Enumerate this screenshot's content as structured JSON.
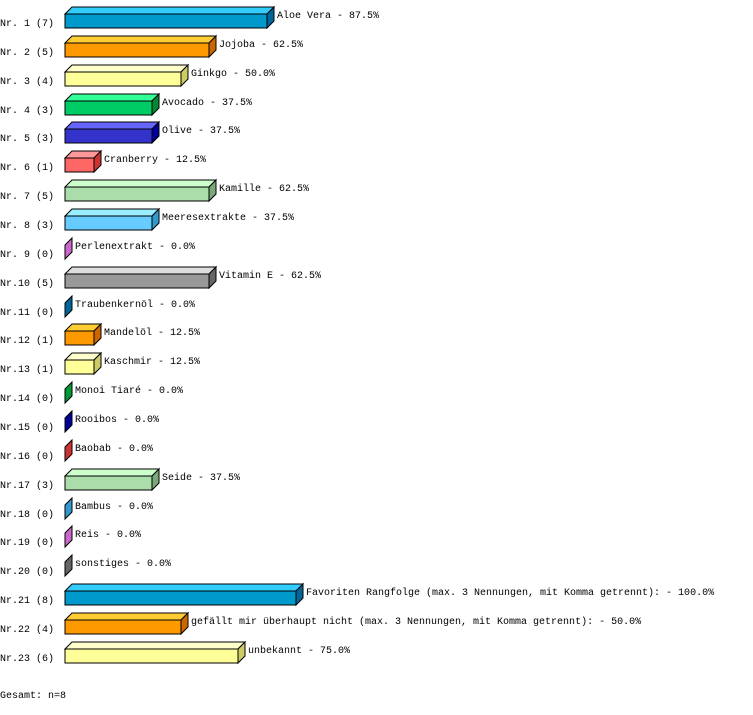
{
  "chart_data": {
    "type": "bar",
    "orientation": "horizontal",
    "style": "3d",
    "xlim": [
      0,
      100
    ],
    "grid": false,
    "bars": [
      {
        "row_label": "Nr. 1 (7)",
        "count": 7,
        "name": "Aloe Vera",
        "value": 87.5,
        "value_label": "87.5%",
        "front": "#0099cc",
        "top": "#33ccff",
        "side": "#006699"
      },
      {
        "row_label": "Nr. 2 (5)",
        "count": 5,
        "name": "Jojoba",
        "value": 62.5,
        "value_label": "62.5%",
        "front": "#ff9900",
        "top": "#ffcc33",
        "side": "#cc6600"
      },
      {
        "row_label": "Nr. 3 (4)",
        "count": 4,
        "name": "Ginkgo",
        "value": 50.0,
        "value_label": "50.0%",
        "front": "#ffff99",
        "top": "#ffffcc",
        "side": "#cccc66"
      },
      {
        "row_label": "Nr. 4 (3)",
        "count": 3,
        "name": "Avocado",
        "value": 37.5,
        "value_label": "37.5%",
        "front": "#00cc66",
        "top": "#33ff99",
        "side": "#008833"
      },
      {
        "row_label": "Nr. 5 (3)",
        "count": 3,
        "name": "Olive",
        "value": 37.5,
        "value_label": "37.5%",
        "front": "#3333cc",
        "top": "#6666ff",
        "side": "#000099"
      },
      {
        "row_label": "Nr. 6 (1)",
        "count": 1,
        "name": "Cranberry",
        "value": 12.5,
        "value_label": "12.5%",
        "front": "#ff6666",
        "top": "#ff9999",
        "side": "#cc3333"
      },
      {
        "row_label": "Nr. 7 (5)",
        "count": 5,
        "name": "Kamille",
        "value": 62.5,
        "value_label": "62.5%",
        "front": "#aaddaa",
        "top": "#ccffcc",
        "side": "#77aa77"
      },
      {
        "row_label": "Nr. 8 (3)",
        "count": 3,
        "name": "Meeresextrakte",
        "value": 37.5,
        "value_label": "37.5%",
        "front": "#66ccff",
        "top": "#99eeff",
        "side": "#3399cc"
      },
      {
        "row_label": "Nr. 9 (0)",
        "count": 0,
        "name": "Perlenextrakt",
        "value": 0.0,
        "value_label": " 0.0%",
        "front": "#cc66cc",
        "top": "#ee99ee",
        "side": "#cc66cc"
      },
      {
        "row_label": "Nr.10 (5)",
        "count": 5,
        "name": "Vitamin E",
        "value": 62.5,
        "value_label": "62.5%",
        "front": "#999999",
        "top": "#dddddd",
        "side": "#666666"
      },
      {
        "row_label": "Nr.11 (0)",
        "count": 0,
        "name": "Traubenkernöl",
        "value": 0.0,
        "value_label": " 0.0%",
        "front": "#006699",
        "top": "#3399cc",
        "side": "#006699"
      },
      {
        "row_label": "Nr.12 (1)",
        "count": 1,
        "name": "Mandelöl",
        "value": 12.5,
        "value_label": "12.5%",
        "front": "#ff9900",
        "top": "#ffcc33",
        "side": "#cc6600"
      },
      {
        "row_label": "Nr.13 (1)",
        "count": 1,
        "name": "Kaschmir",
        "value": 12.5,
        "value_label": "12.5%",
        "front": "#ffff99",
        "top": "#ffffcc",
        "side": "#cccc66"
      },
      {
        "row_label": "Nr.14 (0)",
        "count": 0,
        "name": "Monoi Tiaré",
        "value": 0.0,
        "value_label": " 0.0%",
        "front": "#009933",
        "top": "#33cc66",
        "side": "#009933"
      },
      {
        "row_label": "Nr.15 (0)",
        "count": 0,
        "name": "Rooibos",
        "value": 0.0,
        "value_label": " 0.0%",
        "front": "#000099",
        "top": "#3333cc",
        "side": "#000099"
      },
      {
        "row_label": "Nr.16 (0)",
        "count": 0,
        "name": "Baobab",
        "value": 0.0,
        "value_label": " 0.0%",
        "front": "#cc3333",
        "top": "#ff6666",
        "side": "#cc3333"
      },
      {
        "row_label": "Nr.17 (3)",
        "count": 3,
        "name": "Seide",
        "value": 37.5,
        "value_label": "37.5%",
        "front": "#aaddaa",
        "top": "#ccffcc",
        "side": "#77aa77"
      },
      {
        "row_label": "Nr.18 (0)",
        "count": 0,
        "name": "Bambus",
        "value": 0.0,
        "value_label": " 0.0%",
        "front": "#3399cc",
        "top": "#66ccff",
        "side": "#3399cc"
      },
      {
        "row_label": "Nr.19 (0)",
        "count": 0,
        "name": "Reis",
        "value": 0.0,
        "value_label": " 0.0%",
        "front": "#cc66cc",
        "top": "#ee99ee",
        "side": "#cc66cc"
      },
      {
        "row_label": "Nr.20 (0)",
        "count": 0,
        "name": "sonstiges",
        "value": 0.0,
        "value_label": " 0.0%",
        "front": "#666666",
        "top": "#999999",
        "side": "#666666"
      },
      {
        "row_label": "Nr.21 (8)",
        "count": 8,
        "name": "Favoriten Rangfolge (max. 3 Nennungen, mit Komma getrennt):",
        "value": 100.0,
        "value_label": "100.0%",
        "front": "#0099cc",
        "top": "#33ccff",
        "side": "#006699"
      },
      {
        "row_label": "Nr.22 (4)",
        "count": 4,
        "name": "gefällt mir überhaupt nicht (max. 3 Nennungen, mit Komma getrennt):",
        "value": 50.0,
        "value_label": "50.0%",
        "front": "#ff9900",
        "top": "#ffcc33",
        "side": "#cc6600"
      },
      {
        "row_label": "Nr.23 (6)",
        "count": 6,
        "name": "unbekannt",
        "value": 75.0,
        "value_label": "75.0%",
        "front": "#ffff99",
        "top": "#ffffcc",
        "side": "#cccc66"
      }
    ]
  },
  "footer": {
    "total": "Gesamt: n=8"
  }
}
